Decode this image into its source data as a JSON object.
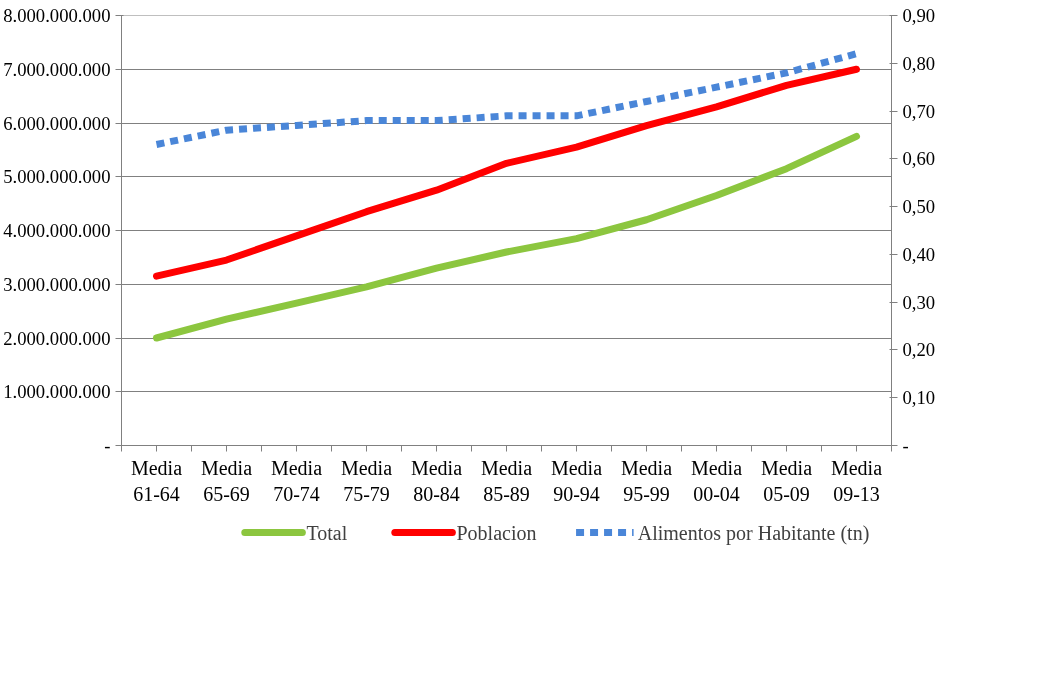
{
  "chart_data": {
    "type": "line",
    "categories": [
      "Media 61-64",
      "Media 65-69",
      "Media 70-74",
      "Media 75-79",
      "Media 80-84",
      "Media 85-89",
      "Media 90-94",
      "Media 95-99",
      "Media 00-04",
      "Media 05-09",
      "Media 09-13"
    ],
    "series": [
      {
        "name": "Total",
        "color": "#8cc63f",
        "values": [
          2000000000.0,
          2350000000.0,
          2650000000.0,
          2950000000.0,
          3300000000.0,
          3600000000.0,
          3850000000.0,
          4200000000.0,
          4650000000.0,
          5150000000.0,
          5750000000.0
        ]
      },
      {
        "name": "Poblacion",
        "color": "#ff0000",
        "values": [
          3150000000.0,
          3450000000.0,
          3900000000.0,
          4350000000.0,
          4750000000.0,
          5250000000.0,
          5550000000.0,
          5950000000.0,
          6300000000.0,
          6700000000.0,
          7000000000.0
        ]
      },
      {
        "name": "Alimentos por Habitante (tn)",
        "color": "#4a86d8",
        "axis": "y2",
        "line_style": "dashed",
        "values": [
          0.63,
          0.66,
          0.67,
          0.68,
          0.68,
          0.69,
          0.69,
          0.72,
          0.75,
          0.78,
          0.82
        ]
      }
    ],
    "ylim": [
      0,
      8000000000
    ],
    "yticks": [
      {
        "value": 0,
        "label": "-"
      },
      {
        "value": 1000000000,
        "label": "1.000.000.000"
      },
      {
        "value": 2000000000,
        "label": "2.000.000.000"
      },
      {
        "value": 3000000000,
        "label": "3.000.000.000"
      },
      {
        "value": 4000000000,
        "label": "4.000.000.000"
      },
      {
        "value": 5000000000,
        "label": "5.000.000.000"
      },
      {
        "value": 6000000000,
        "label": "6.000.000.000"
      },
      {
        "value": 7000000000,
        "label": "7.000.000.000"
      },
      {
        "value": 8000000000,
        "label": "8.000.000.000"
      }
    ],
    "y2lim": [
      0,
      0.9
    ],
    "y2ticks": [
      {
        "value": 0,
        "label": "-"
      },
      {
        "value": 0.1,
        "label": "0,10"
      },
      {
        "value": 0.2,
        "label": "0,20"
      },
      {
        "value": 0.3,
        "label": "0,30"
      },
      {
        "value": 0.4,
        "label": "0,40"
      },
      {
        "value": 0.5,
        "label": "0,50"
      },
      {
        "value": 0.6,
        "label": "0,60"
      },
      {
        "value": 0.7,
        "label": "0,70"
      },
      {
        "value": 0.8,
        "label": "0,80"
      },
      {
        "value": 0.9,
        "label": "0,90"
      }
    ],
    "grid": "y",
    "legend": "bottom",
    "line_style": "solid"
  }
}
